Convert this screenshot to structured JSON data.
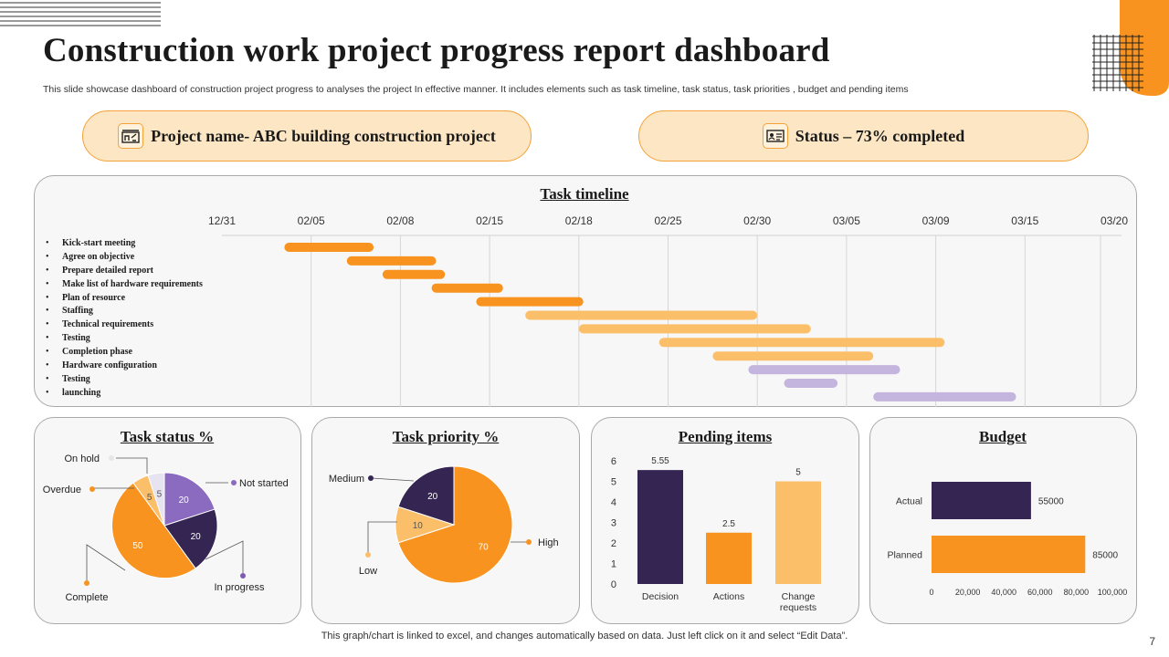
{
  "header": {
    "title": "Construction work project progress report dashboard",
    "subtitle": "This slide showcase dashboard of construction project progress to analyses the project In effective manner. It includes elements such as task timeline, task status, task priorities , budget and pending items"
  },
  "project": {
    "label": "Project name- ABC building construction project",
    "icon": "construction-site-icon"
  },
  "status": {
    "label": "Status – 73% completed",
    "icon": "status-board-icon"
  },
  "colors": {
    "orange": "#f7931e",
    "dark_purple": "#352553",
    "light_orange": "#fbbf6a",
    "lavender": "#c3b5dd",
    "purple": "#7e5ab5",
    "pill_fill": "#fde6c4",
    "accent": "#f7931e"
  },
  "panels": {
    "timeline_title": "Task timeline",
    "status_title": "Task status %",
    "priority_title": "Task priority %",
    "pending_title": "Pending items",
    "budget_title": "Budget"
  },
  "footer": {
    "note": "This graph/chart is linked to excel,  and changes automatically based on data. Just left click on it and select “Edit Data”.",
    "page": "7"
  },
  "chart_data": [
    {
      "type": "gantt",
      "title": "Task timeline",
      "x_ticks": [
        "12/31",
        "02/05",
        "02/08",
        "02/15",
        "02/18",
        "02/25",
        "02/30",
        "03/05",
        "03/09",
        "03/15",
        "03/20"
      ],
      "tasks": [
        {
          "name": "Kick-start meeting",
          "start": 0.7,
          "end": 1.7,
          "color": "orange"
        },
        {
          "name": "Agree on objective",
          "start": 1.4,
          "end": 2.4,
          "color": "orange"
        },
        {
          "name": "Prepare detailed report",
          "start": 1.8,
          "end": 2.5,
          "color": "orange"
        },
        {
          "name": "Make list of hardware requirements",
          "start": 2.35,
          "end": 3.15,
          "color": "orange"
        },
        {
          "name": "Plan of resource",
          "start": 2.85,
          "end": 4.05,
          "color": "orange"
        },
        {
          "name": "Staffing",
          "start": 3.4,
          "end": 6.0,
          "color": "light_orange"
        },
        {
          "name": "Technical requirements",
          "start": 4.0,
          "end": 6.6,
          "color": "light_orange"
        },
        {
          "name": "Testing",
          "start": 4.9,
          "end": 8.1,
          "color": "light_orange"
        },
        {
          "name": "Completion phase",
          "start": 5.5,
          "end": 7.3,
          "color": "light_orange"
        },
        {
          "name": "Hardware configuration",
          "start": 5.9,
          "end": 7.6,
          "color": "lavender"
        },
        {
          "name": "Testing",
          "start": 6.3,
          "end": 6.9,
          "color": "lavender"
        },
        {
          "name": "launching",
          "start": 7.3,
          "end": 8.9,
          "color": "lavender"
        }
      ]
    },
    {
      "type": "pie",
      "title": "Task status %",
      "slices": [
        {
          "label": "Not started",
          "value": 20,
          "color": "#8a6bc0"
        },
        {
          "label": "In progress",
          "value": 20,
          "color": "#352553"
        },
        {
          "label": "Complete",
          "value": 50,
          "color": "#f7931e"
        },
        {
          "label": "Overdue",
          "value": 5,
          "color": "#fbbf6a"
        },
        {
          "label": "On hold",
          "value": 5,
          "color": "#e8e3f0"
        }
      ]
    },
    {
      "type": "pie",
      "title": "Task priority %",
      "slices": [
        {
          "label": "High",
          "value": 70,
          "color": "#f7931e"
        },
        {
          "label": "Low",
          "value": 10,
          "color": "#fbbf6a"
        },
        {
          "label": "Medium",
          "value": 20,
          "color": "#352553"
        }
      ]
    },
    {
      "type": "bar",
      "title": "Pending items",
      "categories": [
        "Decision",
        "Actions",
        "Change requests"
      ],
      "values": [
        5.55,
        2.5,
        5
      ],
      "value_labels": [
        "5.55",
        "2.5",
        "5"
      ],
      "colors": [
        "#352553",
        "#f7931e",
        "#fbbf6a"
      ],
      "ylim": [
        0,
        6
      ],
      "y_ticks": [
        "0",
        "1",
        "2",
        "3",
        "4",
        "5",
        "6"
      ]
    },
    {
      "type": "bar",
      "orientation": "horizontal",
      "title": "Budget",
      "categories": [
        "Actual",
        "Planned"
      ],
      "values": [
        55000,
        85000
      ],
      "value_labels": [
        "55000",
        "85000"
      ],
      "colors": [
        "#352553",
        "#f7931e"
      ],
      "xlim": [
        0,
        100000
      ],
      "x_ticks": [
        "0",
        "20,000",
        "40,000",
        "60,000",
        "80,000",
        "100,000"
      ]
    }
  ]
}
